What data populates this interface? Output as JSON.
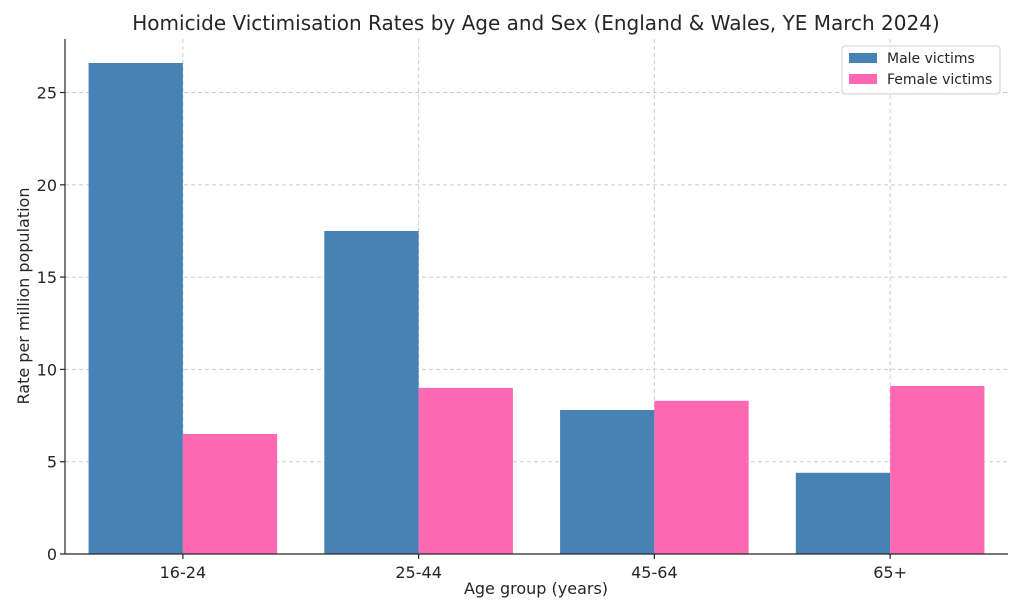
{
  "chart_data": {
    "type": "bar",
    "title": "Homicide Victimisation Rates by Age and Sex (England & Wales, YE March 2024)",
    "xlabel": "Age group (years)",
    "ylabel": "Rate per million population",
    "categories": [
      "16-24",
      "25-44",
      "45-64",
      "65+"
    ],
    "series": [
      {
        "name": "Male victims",
        "color": "#4682B4",
        "values": [
          26.6,
          17.5,
          7.8,
          4.4
        ]
      },
      {
        "name": "Female victims",
        "color": "#FF69B4",
        "values": [
          6.5,
          9.0,
          8.3,
          9.1
        ]
      }
    ],
    "ylim": [
      0,
      27.9
    ],
    "yticks": [
      0,
      5,
      10,
      15,
      20,
      25
    ],
    "grid": true,
    "legend_position": "top-right"
  }
}
